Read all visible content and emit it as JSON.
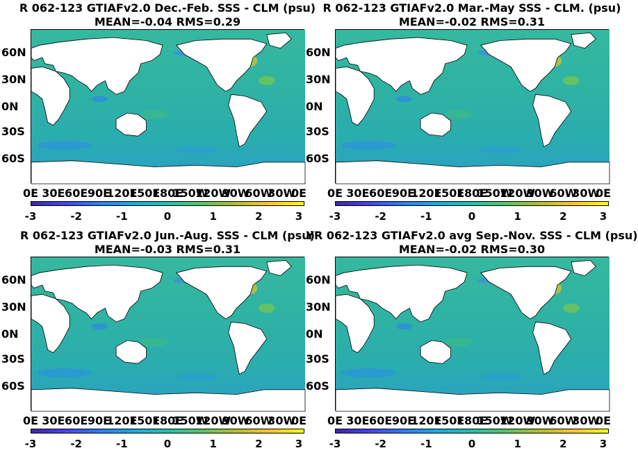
{
  "panels": [
    {
      "title_line1": "R 062-123 GTIAFv2.0  Dec.-Feb. SSS - CLM (psu)",
      "title_line2": "MEAN=-0.04   RMS=0.29",
      "lat_ticks": [
        "60N",
        "30N",
        "0N",
        "30S",
        "60S"
      ],
      "lon_ticks": [
        "0E",
        "30E",
        "60E",
        "90E",
        "120E",
        "150E",
        "180E",
        "150W",
        "120W",
        "90W",
        "60W",
        "30W",
        "0E"
      ],
      "colorbar_ticks": [
        "-3",
        "-2",
        "-1",
        "0",
        "1",
        "2",
        "3"
      ]
    },
    {
      "title_line1": "R 062-123 GTIAFv2.0 Mar.-May SSS - CLM. (psu)",
      "title_line2": "MEAN=-0.02   RMS=0.31",
      "lat_ticks": [
        "60N",
        "30N",
        "0N",
        "30S",
        "60S"
      ],
      "lon_ticks": [
        "0E",
        "30E",
        "60E",
        "90E",
        "120E",
        "150E",
        "180E",
        "150W",
        "120W",
        "90W",
        "60W",
        "30W",
        "0E"
      ],
      "colorbar_ticks": [
        "-3",
        "-2",
        "-1",
        "0",
        "1",
        "2",
        "3"
      ]
    },
    {
      "title_line1": "R 062-123 GTIAFv2.0 Jun.-Aug. SSS - CLM (psu)",
      "title_line2": "MEAN=-0.03   RMS=0.31",
      "lat_ticks": [
        "60N",
        "30N",
        "0N",
        "30S",
        "60S"
      ],
      "lon_ticks": [
        "0E",
        "30E",
        "60E",
        "90E",
        "120E",
        "150E",
        "180E",
        "150W",
        "120W",
        "90W",
        "60W",
        "30W",
        "0E"
      ],
      "colorbar_ticks": [
        "-3",
        "-2",
        "-1",
        "0",
        "1",
        "2",
        "3"
      ]
    },
    {
      "title_line1": "YR 062-123 GTIAFv2.0 avg Sep.-Nov. SSS - CLM (psu)",
      "title_line2": "MEAN=-0.02   RMS=0.30",
      "lat_ticks": [
        "60N",
        "30N",
        "0N",
        "30S",
        "60S"
      ],
      "lon_ticks": [
        "0E",
        "30E",
        "60E",
        "90E",
        "120E",
        "150E",
        "180E",
        "150W",
        "120W",
        "90W",
        "60W",
        "30W",
        "0E"
      ],
      "colorbar_ticks": [
        "-3",
        "-2",
        "-1",
        "0",
        "1",
        "2",
        "3"
      ]
    }
  ],
  "colors": {
    "ocean_base": "#2fb3a2",
    "land": "#ffffff",
    "colormap": [
      "#3e26a8",
      "#4743f8",
      "#2b7ff5",
      "#1caadf",
      "#24bfaa",
      "#56c667",
      "#b3bd2e",
      "#f9c52f",
      "#f9fb0e"
    ]
  }
}
